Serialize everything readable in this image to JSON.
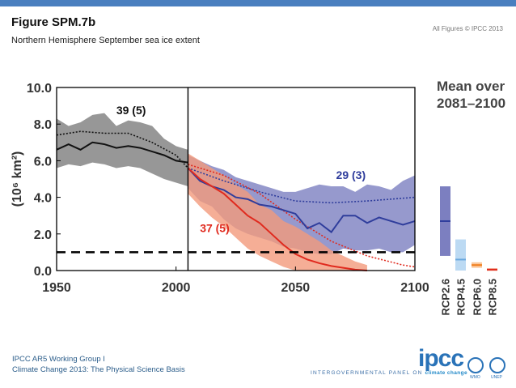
{
  "header": {
    "title": "Figure SPM.7b",
    "subtitle": "Northern Hemisphere September sea ice extent",
    "copyright": "All Figures © IPCC 2013"
  },
  "footer": {
    "line1": "IPCC AR5 Working Group I",
    "line2": "Climate Change 2013: The Physical Science Basis",
    "panel_text": "INTERGOVERNMENTAL PANEL ON",
    "panel_emph": "climate change",
    "logo_text": "ipcc",
    "wmo_label": "WMO",
    "unep_label": "UNEP"
  },
  "colors": {
    "historical": "#111111",
    "historical_band": "#8c8c8c",
    "rcp26": "#2f3d9c",
    "rcp26_band": "#7c7fc0",
    "rcp85": "#e02a1e",
    "rcp85_band": "#f39a7c",
    "rcp45": "#6aa8de",
    "rcp45_band": "#bcdaf3",
    "rcp60": "#f07e1c",
    "rcp60_band": "#fbc79a",
    "topbar": "#4a7fbf"
  },
  "chart_data": {
    "type": "line",
    "ylabel": "(10⁶ km²)",
    "xlim": [
      1950,
      2100
    ],
    "ylim": [
      0,
      10
    ],
    "xticks": [
      "1950",
      "2000",
      "2050",
      "2100"
    ],
    "yticks": [
      "0.0",
      "2.0",
      "4.0",
      "6.0",
      "8.0",
      "10.0"
    ],
    "annotations": {
      "historical_count": "39 (5)",
      "rcp26_count": "29 (3)",
      "rcp85_count": "37 (5)"
    },
    "divider_year": 2005,
    "reference_level": 1.0,
    "series": [
      {
        "key": "historical",
        "x": [
          1950,
          1955,
          1960,
          1965,
          1970,
          1975,
          1980,
          1985,
          1990,
          1995,
          2000,
          2005
        ],
        "y": [
          6.6,
          6.9,
          6.6,
          7.0,
          6.9,
          6.7,
          6.8,
          6.7,
          6.5,
          6.3,
          6.0,
          5.9
        ],
        "lower": [
          5.6,
          5.8,
          5.7,
          5.9,
          5.8,
          5.6,
          5.7,
          5.6,
          5.3,
          5.0,
          4.8,
          4.6
        ],
        "upper": [
          8.3,
          7.9,
          8.1,
          8.5,
          8.6,
          7.9,
          8.2,
          8.1,
          7.9,
          7.2,
          6.8,
          6.6
        ]
      },
      {
        "key": "historical_obs_dotted",
        "x": [
          1950,
          1960,
          1970,
          1980,
          1990,
          2000,
          2005
        ],
        "y": [
          7.4,
          7.6,
          7.5,
          7.5,
          7.0,
          6.3,
          5.6
        ]
      },
      {
        "key": "rcp26",
        "x": [
          2005,
          2010,
          2015,
          2020,
          2025,
          2030,
          2035,
          2040,
          2045,
          2050,
          2055,
          2060,
          2065,
          2070,
          2075,
          2080,
          2085,
          2090,
          2095,
          2100
        ],
        "y": [
          5.6,
          4.9,
          4.6,
          4.4,
          4.0,
          3.9,
          3.6,
          3.5,
          3.3,
          3.1,
          2.3,
          2.6,
          2.1,
          3.0,
          3.0,
          2.6,
          2.9,
          2.7,
          2.5,
          2.7
        ],
        "lower": [
          4.5,
          3.8,
          3.5,
          2.8,
          2.3,
          2.0,
          1.8,
          1.6,
          1.3,
          1.2,
          1.0,
          0.9,
          0.9,
          1.2,
          1.1,
          1.1,
          1.2,
          1.0,
          1.0,
          1.4
        ],
        "upper": [
          6.3,
          6.0,
          5.7,
          5.5,
          5.1,
          4.9,
          4.7,
          4.5,
          4.3,
          4.3,
          4.5,
          4.7,
          4.6,
          4.6,
          4.3,
          4.7,
          4.6,
          4.4,
          4.9,
          5.2
        ]
      },
      {
        "key": "rcp26_mean_dotted",
        "x": [
          2005,
          2020,
          2035,
          2050,
          2065,
          2080,
          2100
        ],
        "y": [
          5.6,
          4.9,
          4.3,
          3.8,
          3.7,
          3.8,
          4.0
        ]
      },
      {
        "key": "rcp85",
        "x": [
          2005,
          2010,
          2015,
          2020,
          2025,
          2030,
          2035,
          2040,
          2045,
          2050,
          2055,
          2060,
          2065,
          2070,
          2075,
          2080
        ],
        "y": [
          5.6,
          5.0,
          4.6,
          4.2,
          3.6,
          3.0,
          2.6,
          2.0,
          1.4,
          0.9,
          0.6,
          0.4,
          0.25,
          0.15,
          0.05,
          0.0
        ],
        "lower": [
          4.2,
          3.5,
          2.9,
          2.4,
          1.8,
          1.2,
          0.8,
          0.5,
          0.2,
          0.0,
          0.0,
          0.0,
          0.0,
          0.0,
          0.0,
          0.0
        ],
        "upper": [
          6.4,
          6.0,
          5.6,
          5.2,
          4.7,
          4.3,
          3.6,
          3.3,
          2.7,
          2.4,
          2.0,
          1.6,
          1.1,
          0.8,
          0.5,
          0.3
        ]
      },
      {
        "key": "rcp85_mean_dotted",
        "x": [
          2005,
          2020,
          2035,
          2050,
          2065,
          2080,
          2095,
          2100
        ],
        "y": [
          5.8,
          5.2,
          4.2,
          2.8,
          1.6,
          0.8,
          0.3,
          0.2
        ]
      }
    ],
    "mean_panel": {
      "title_line1": "Mean over",
      "title_line2": "2081–2100",
      "bars": [
        {
          "label": "RCP2.6",
          "mean": 2.7,
          "low": 0.8,
          "high": 4.6
        },
        {
          "label": "RCP4.5",
          "mean": 0.6,
          "low": 0.0,
          "high": 1.7
        },
        {
          "label": "RCP6.0",
          "mean": 0.3,
          "low": 0.15,
          "high": 0.45
        },
        {
          "label": "RCP8.5",
          "mean": 0.05,
          "low": 0.0,
          "high": 0.12
        }
      ]
    }
  }
}
